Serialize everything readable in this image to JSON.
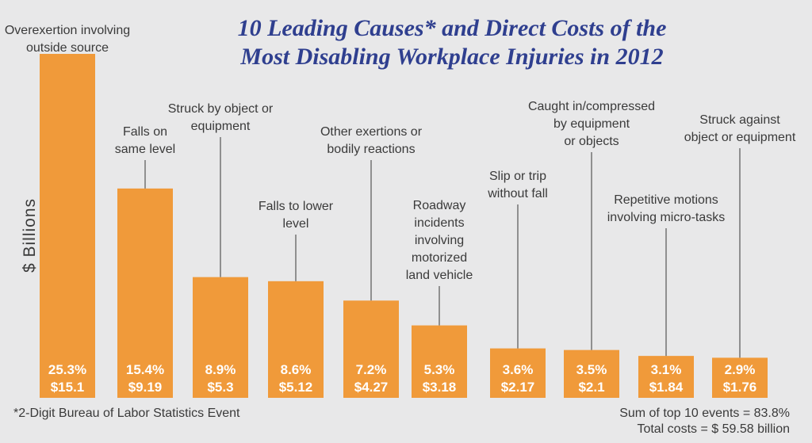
{
  "chart_data": {
    "type": "bar",
    "title": "10 Leading Causes* and Direct Costs of the Most Disabling Workplace Injuries in 2012",
    "title_lines": [
      "10 Leading Causes* and Direct Costs of the",
      "Most Disabling Workplace Injuries in 2012"
    ],
    "ylabel": "$ Billions",
    "ylim": [
      0,
      15.1
    ],
    "categories": [
      "Overexertion involving outside source",
      "Falls on same level",
      "Struck by object or equipment",
      "Falls to lower level",
      "Other exertions or bodily reactions",
      "Roadway incidents involving motorized land vehicle",
      "Slip or trip without fall",
      "Caught in/compressed by equipment or objects",
      "Repetitive motions involving micro-tasks",
      "Struck against object or equipment"
    ],
    "category_lines": [
      [
        "Overexertion involving",
        "outside source"
      ],
      [
        "Falls on",
        "same level"
      ],
      [
        "Struck by object or",
        "equipment"
      ],
      [
        "Falls to lower",
        "level"
      ],
      [
        "Other exertions or",
        "bodily reactions"
      ],
      [
        "Roadway",
        "incidents",
        "involving",
        "motorized",
        "land vehicle"
      ],
      [
        "Slip or trip",
        "without fall"
      ],
      [
        "Caught in/compressed",
        "by equipment",
        "or objects"
      ],
      [
        "Repetitive motions",
        "involving micro-tasks"
      ],
      [
        "Struck against",
        "object or equipment"
      ]
    ],
    "values": [
      15.1,
      9.19,
      5.3,
      5.12,
      4.27,
      3.18,
      2.17,
      2.1,
      1.84,
      1.76
    ],
    "percent_labels": [
      "25.3%",
      "15.4%",
      "8.9%",
      "8.6%",
      "7.2%",
      "5.3%",
      "3.6%",
      "3.5%",
      "3.1%",
      "2.9%"
    ],
    "value_labels": [
      "$15.1",
      "$9.19",
      "$5.3",
      "$5.12",
      "$4.27",
      "$3.18",
      "$2.17",
      "$2.1",
      "$1.84",
      "$1.76"
    ],
    "grid": false,
    "legend": "none",
    "colors": {
      "bar": "#f09a3a",
      "title": "#2f3f8f",
      "text": "#3a3a3a",
      "bar_label": "#ffffff",
      "background": "#e8e8e9",
      "leader": "#555555"
    }
  },
  "footnote": "*2-Digit Bureau of Labor Statistics Event",
  "sum_text": "Sum of top 10 events = 83.8%",
  "total_text": "Total costs = $ 59.58 billion"
}
